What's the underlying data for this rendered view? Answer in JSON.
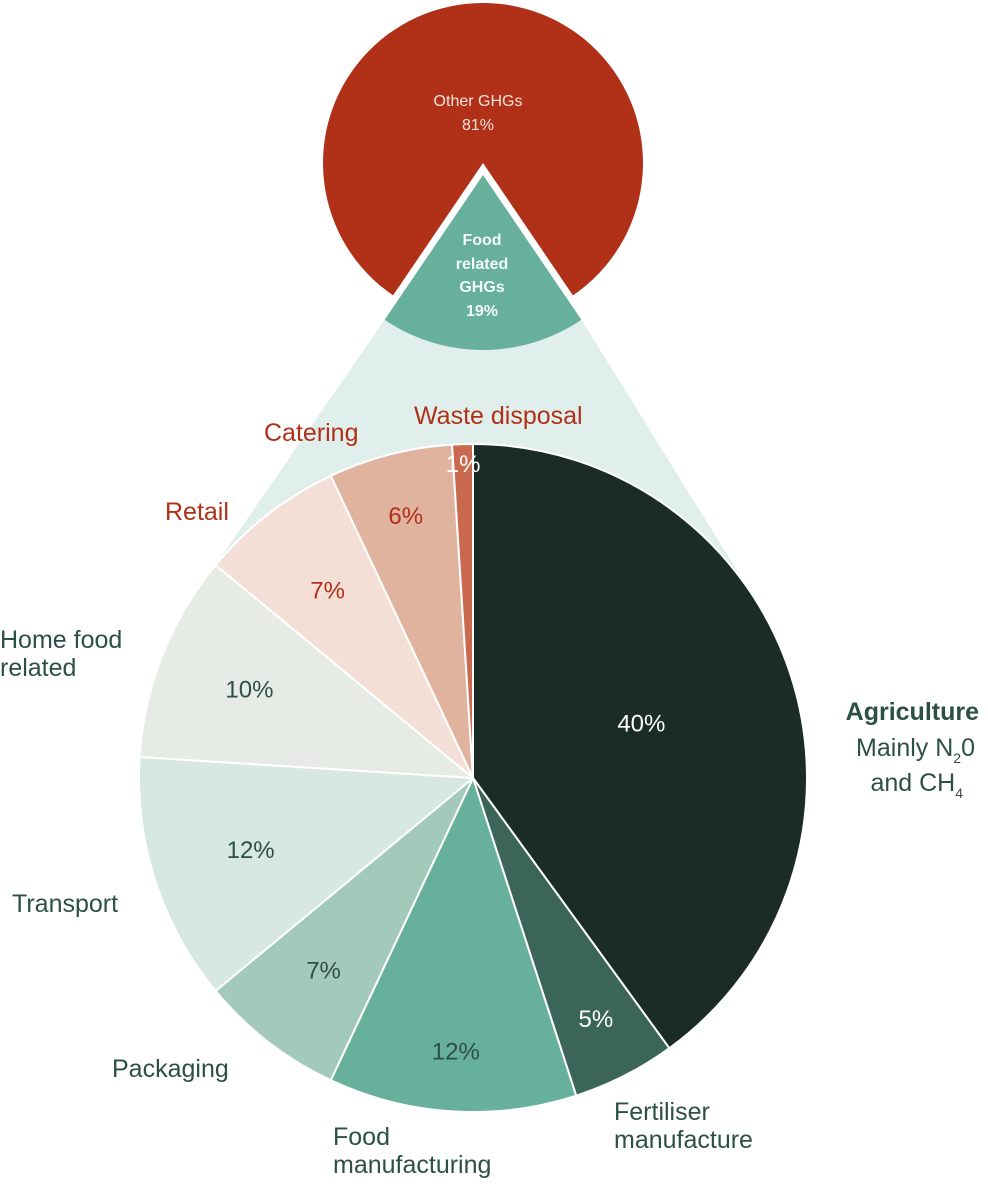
{
  "chart_data": [
    {
      "type": "pie",
      "slices": [
        {
          "label": "Other GHGs",
          "pct_label": "81%",
          "value": 81,
          "color": "#b03018"
        },
        {
          "label": "Food related GHGs",
          "label_lines": [
            "Food",
            "related",
            "GHGs"
          ],
          "pct_label": "19%",
          "value": 19,
          "color": "#66b09c"
        }
      ]
    },
    {
      "type": "pie",
      "slices": [
        {
          "label": "Agriculture",
          "sublabel_lines": [
            "Mainly N",
            "2",
            "0",
            "and CH",
            "4"
          ],
          "value": 40,
          "pct_label": "40%",
          "color": "#1b2b25",
          "pct_color": "#ffffff",
          "label_color": "#2c5048"
        },
        {
          "label": "Fertiliser manufacture",
          "label_lines": [
            "Fertiliser",
            "manufacture"
          ],
          "value": 5,
          "pct_label": "5%",
          "color": "#3c6559",
          "pct_color": "#ffffff",
          "label_color": "#2c5048"
        },
        {
          "label": "Food manufacturing",
          "label_lines": [
            "Food",
            "manufacturing"
          ],
          "value": 12,
          "pct_label": "12%",
          "color": "#66b09c",
          "pct_color": "#2e4f47",
          "label_color": "#2c5048"
        },
        {
          "label": "Packaging",
          "label_lines": [
            "Packaging"
          ],
          "value": 7,
          "pct_label": "7%",
          "color": "#a3c9bb",
          "pct_color": "#2e4f47",
          "label_color": "#2c5048"
        },
        {
          "label": "Transport",
          "label_lines": [
            "Transport"
          ],
          "value": 12,
          "pct_label": "12%",
          "color": "#d7e7e1",
          "pct_color": "#2e4f47",
          "label_color": "#2c5048"
        },
        {
          "label": "Home food related",
          "label_lines": [
            "Home food",
            "related"
          ],
          "value": 10,
          "pct_label": "10%",
          "color": "#e6ebe6",
          "pct_color": "#2e4f47",
          "label_color": "#2c5048"
        },
        {
          "label": "Retail",
          "label_lines": [
            "Retail"
          ],
          "value": 7,
          "pct_label": "7%",
          "color": "#f3dfd6",
          "pct_color": "#b03018",
          "label_color": "#b03018"
        },
        {
          "label": "Catering",
          "label_lines": [
            "Catering"
          ],
          "value": 6,
          "pct_label": "6%",
          "color": "#e0b39f",
          "pct_color": "#b03018",
          "label_color": "#b03018"
        },
        {
          "label": "Waste disposal",
          "label_lines": [
            "Waste disposal"
          ],
          "value": 1,
          "pct_label": "1%",
          "color": "#c96a50",
          "pct_color": "#ffffff",
          "label_color": "#b03018"
        }
      ]
    }
  ],
  "colors": {
    "connector": "#e0efeb",
    "slice_border": "#ffffff"
  }
}
